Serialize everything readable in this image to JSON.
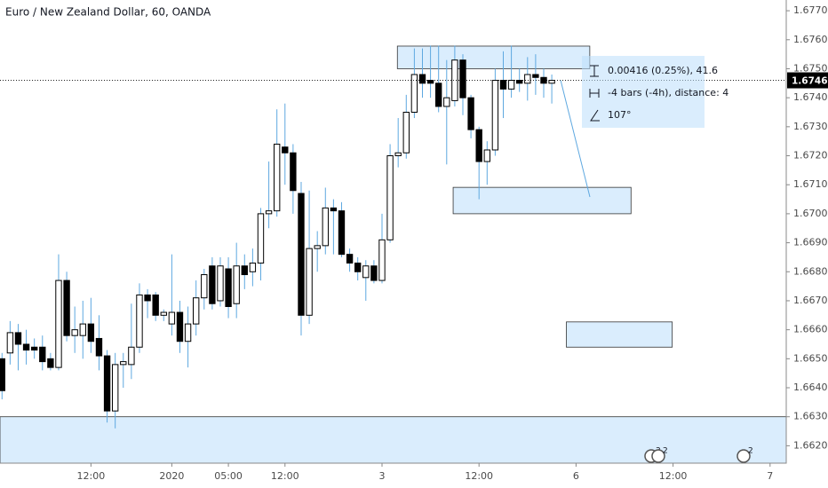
{
  "chart_data": {
    "type": "candlestick",
    "title": "Euro / New Zealand Dollar, 60, OANDA",
    "open": [
      1.665,
      1.6652,
      1.6659,
      1.6655,
      1.6654,
      1.6654,
      1.665,
      1.6647,
      1.6677,
      1.6658,
      1.6658,
      1.6662,
      1.6657,
      1.6651,
      1.6632,
      1.6648,
      1.6648,
      1.6654,
      1.6672,
      1.6672,
      1.6665,
      1.6662,
      1.6666,
      1.6656,
      1.6662,
      1.6671,
      1.6682,
      1.667,
      1.6681,
      1.6669,
      1.6682,
      1.668,
      1.6683,
      1.67,
      1.6701,
      1.6723,
      1.6721,
      1.6707,
      1.6665,
      1.6688,
      1.6689,
      1.6702,
      1.6701,
      1.6686,
      1.6683,
      1.6678,
      1.6682,
      1.6677,
      1.6691,
      1.672,
      1.6721,
      1.6735,
      1.6748,
      1.6746,
      1.6745,
      1.6737,
      1.6739,
      1.6753,
      1.674,
      1.6729,
      1.6718,
      1.6722,
      1.6746,
      1.6743,
      1.6746,
      1.6745,
      1.6748,
      1.6747,
      1.6745
    ],
    "high": [
      1.6652,
      1.6663,
      1.6662,
      1.666,
      1.6657,
      1.6658,
      1.6652,
      1.6686,
      1.668,
      1.6668,
      1.667,
      1.6671,
      1.6665,
      1.6653,
      1.6652,
      1.6652,
      1.6669,
      1.6676,
      1.6674,
      1.6673,
      1.6667,
      1.6686,
      1.667,
      1.6668,
      1.6677,
      1.6681,
      1.6685,
      1.6685,
      1.6685,
      1.669,
      1.6686,
      1.6688,
      1.6702,
      1.6718,
      1.6736,
      1.6738,
      1.6724,
      1.6711,
      1.6708,
      1.6694,
      1.6709,
      1.6705,
      1.6704,
      1.6688,
      1.6685,
      1.6684,
      1.6684,
      1.67,
      1.6724,
      1.6733,
      1.6741,
      1.6757,
      1.6757,
      1.6758,
      1.6758,
      1.6753,
      1.6758,
      1.6755,
      1.6741,
      1.673,
      1.6725,
      1.675,
      1.6756,
      1.6758,
      1.675,
      1.6754,
      1.6755,
      1.675,
      1.6748
    ],
    "low": [
      1.6636,
      1.6648,
      1.6646,
      1.6648,
      1.665,
      1.6646,
      1.6646,
      1.6646,
      1.6656,
      1.6652,
      1.665,
      1.6652,
      1.6646,
      1.6628,
      1.6626,
      1.664,
      1.6643,
      1.6652,
      1.6664,
      1.6663,
      1.6663,
      1.6658,
      1.6652,
      1.6647,
      1.6658,
      1.6667,
      1.6667,
      1.6668,
      1.6664,
      1.6664,
      1.6674,
      1.6675,
      1.6677,
      1.6695,
      1.6699,
      1.671,
      1.67,
      1.6658,
      1.6662,
      1.668,
      1.6686,
      1.6686,
      1.6685,
      1.668,
      1.6677,
      1.667,
      1.6676,
      1.6676,
      1.669,
      1.6716,
      1.6719,
      1.6733,
      1.674,
      1.674,
      1.6735,
      1.6717,
      1.6737,
      1.6734,
      1.6726,
      1.6705,
      1.671,
      1.672,
      1.6733,
      1.674,
      1.6742,
      1.6739,
      1.6741,
      1.674,
      1.6738
    ],
    "close": [
      1.6639,
      1.6659,
      1.6655,
      1.6653,
      1.6653,
      1.6649,
      1.6647,
      1.6677,
      1.6658,
      1.666,
      1.6662,
      1.6656,
      1.6651,
      1.6632,
      1.6648,
      1.6649,
      1.6654,
      1.6672,
      1.667,
      1.6665,
      1.6666,
      1.6666,
      1.6656,
      1.6662,
      1.6671,
      1.6679,
      1.6669,
      1.6682,
      1.6668,
      1.6682,
      1.6679,
      1.6683,
      1.67,
      1.6701,
      1.6724,
      1.6721,
      1.6708,
      1.6665,
      1.6688,
      1.6689,
      1.6702,
      1.6701,
      1.6686,
      1.6683,
      1.668,
      1.6682,
      1.6677,
      1.6691,
      1.672,
      1.6721,
      1.6735,
      1.6748,
      1.6745,
      1.6745,
      1.6737,
      1.674,
      1.6753,
      1.674,
      1.6729,
      1.6718,
      1.6722,
      1.6746,
      1.6743,
      1.6746,
      1.6745,
      1.6748,
      1.6747,
      1.6745,
      1.6746
    ],
    "up_color": "#ffffff",
    "down_color": "#000000",
    "wick_color": "#5ea8e0",
    "xlim": [
      -0.25,
      97
    ],
    "xticks": [
      {
        "value": 11,
        "label": "12:00"
      },
      {
        "value": 21,
        "label": "2020"
      },
      {
        "value": 28,
        "label": "05:00"
      },
      {
        "value": 35,
        "label": "12:00"
      },
      {
        "value": 47,
        "label": "3"
      },
      {
        "value": 59,
        "label": "12:00"
      },
      {
        "value": 71,
        "label": "6"
      },
      {
        "value": 83,
        "label": "12:00"
      },
      {
        "value": 95,
        "label": "7"
      }
    ],
    "ylim": [
      1.6614,
      1.67737
    ],
    "yticks": [
      {
        "value": 1.662,
        "label": "1.66200"
      },
      {
        "value": 1.663,
        "label": "1.66300"
      },
      {
        "value": 1.664,
        "label": "1.66400"
      },
      {
        "value": 1.665,
        "label": "1.66500"
      },
      {
        "value": 1.666,
        "label": "1.66600"
      },
      {
        "value": 1.667,
        "label": "1.66700"
      },
      {
        "value": 1.668,
        "label": "1.66800"
      },
      {
        "value": 1.669,
        "label": "1.66900"
      },
      {
        "value": 1.67,
        "label": "1.67000"
      },
      {
        "value": 1.671,
        "label": "1.67100"
      },
      {
        "value": 1.672,
        "label": "1.67200"
      },
      {
        "value": 1.673,
        "label": "1.67300"
      },
      {
        "value": 1.674,
        "label": "1.67400"
      },
      {
        "value": 1.675,
        "label": "1.67500"
      },
      {
        "value": 1.676,
        "label": "1.67600"
      },
      {
        "value": 1.677,
        "label": "1.67700"
      }
    ],
    "last_price": {
      "value": 1.6746,
      "label": "1.67460"
    },
    "zones": [
      {
        "ylow": 1.675,
        "yhigh": 1.67578,
        "xstart": 48.9,
        "xend": 72.7
      },
      {
        "ylow": 1.67,
        "yhigh": 1.67091,
        "xstart": 55.8,
        "xend": 77.8
      },
      {
        "ylow": 1.6654,
        "yhigh": 1.66627,
        "xstart": 69.8,
        "xend": 82.9
      },
      {
        "yhigh": 1.663
      }
    ],
    "measure": [
      "0.00416 (0.25%), 41.6",
      "-4 bars (-4h), distance: 4",
      "107°"
    ],
    "event_badges": [
      "3",
      "2",
      "2"
    ]
  }
}
